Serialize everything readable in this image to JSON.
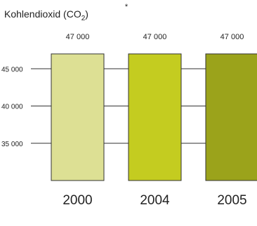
{
  "chart_data": {
    "type": "bar",
    "title": "Kohlendioxid (CO",
    "title_sub": "2",
    "title_close": ")",
    "footnote_marker": "*",
    "categories": [
      "2000",
      "2004",
      "2005"
    ],
    "values": [
      47000,
      47000,
      47000
    ],
    "value_labels": [
      "47 000",
      "47 000",
      "47 000"
    ],
    "yticks": [
      45000,
      40000,
      35000
    ],
    "ytick_labels": [
      "45 000",
      "40 000",
      "35 000"
    ],
    "ylim": [
      30000,
      47000
    ],
    "grid": true,
    "colors": [
      "#dde094",
      "#c4cc20",
      "#9ba31b"
    ],
    "gridline_color": "#333333",
    "xlabel": "",
    "ylabel": ""
  }
}
